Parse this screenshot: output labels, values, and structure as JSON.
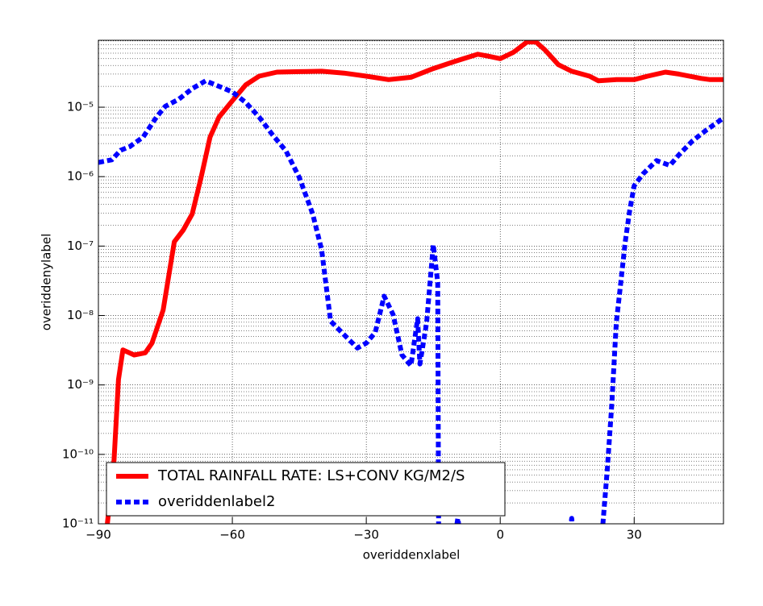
{
  "chart_data": {
    "type": "line",
    "xlabel": "overiddenxlabel",
    "ylabel": "overiddenylabel",
    "xlim": [
      -90,
      50
    ],
    "xticks": [
      {
        "value": -90,
        "label": "−90"
      },
      {
        "value": -60,
        "label": "−60"
      },
      {
        "value": -30,
        "label": "−30"
      },
      0,
      30
    ],
    "ylim": [
      1e-11,
      9.2e-05
    ],
    "yscale": "log",
    "yticks": [
      {
        "value": 1e-11,
        "label": "10⁻¹¹"
      },
      {
        "value": 1e-10,
        "label": "10⁻¹⁰"
      },
      {
        "value": 1e-09,
        "label": "10⁻⁹"
      },
      {
        "value": 1e-08,
        "label": "10⁻⁸"
      },
      {
        "value": 1e-07,
        "label": "10⁻⁷"
      },
      {
        "value": 1e-06,
        "label": "10⁻⁶"
      },
      {
        "value": 1e-05,
        "label": "10⁻⁵"
      }
    ],
    "grid": true,
    "minor_grid": true,
    "legend": "lower left",
    "series": [
      {
        "name": "TOTAL RAINFALL RATE: LS+CONV KG/M2/S",
        "color": "#ff0000",
        "linestyle": "solid",
        "x": [
          -89,
          -88,
          -86.5,
          -85.5,
          -84.5,
          -82,
          -79.5,
          -78,
          -75.5,
          -73,
          -71,
          -69,
          -67,
          -65,
          -63,
          -60,
          -57,
          -54,
          -50,
          -45,
          -40,
          -35,
          -30,
          -25,
          -20,
          -15,
          -10,
          -5,
          -3,
          0,
          3,
          6,
          8,
          10,
          13,
          16,
          20,
          22,
          26,
          30,
          33,
          37,
          40,
          45,
          47,
          50
        ],
        "values": [
          1e-12,
          1e-11,
          8.3e-11,
          1.2e-09,
          3.2e-09,
          2.7e-09,
          2.9e-09,
          4e-09,
          1.2e-08,
          1.15e-07,
          1.7e-07,
          2.9e-07,
          9.7e-07,
          3.7e-06,
          7.2e-06,
          1.24e-05,
          2.1e-05,
          2.8e-05,
          3.2e-05,
          3.25e-05,
          3.3e-05,
          3.1e-05,
          2.8e-05,
          2.5e-05,
          2.7e-05,
          3.6e-05,
          4.6e-05,
          5.8e-05,
          5.5e-05,
          5e-05,
          6.2e-05,
          8.7e-05,
          8.7e-05,
          6.7e-05,
          4.1e-05,
          3.3e-05,
          2.8e-05,
          2.4e-05,
          2.5e-05,
          2.5e-05,
          2.8e-05,
          3.2e-05,
          3e-05,
          2.6e-05,
          2.5e-05,
          2.5e-05
        ]
      },
      {
        "name": "overiddenlabel2",
        "color": "#0000ff",
        "linestyle": "dashed",
        "x": [
          -90,
          -87,
          -85,
          -83,
          -80,
          -77,
          -75,
          -72,
          -69,
          -66,
          -63,
          -60,
          -57,
          -54,
          -51,
          -48,
          -45,
          -42,
          -40,
          -38,
          -35,
          -32,
          -30,
          -28,
          -26,
          -24,
          -22,
          -20,
          -18.5,
          -18,
          -16.5,
          -15,
          -14,
          -13.8,
          -12,
          -9.5,
          -7,
          14,
          16,
          18,
          23,
          24,
          25,
          26,
          27,
          28,
          29,
          30,
          32,
          35,
          38,
          40,
          43,
          46,
          50
        ],
        "values": [
          1.6e-06,
          1.75e-06,
          2.4e-06,
          2.7e-06,
          3.7e-06,
          7.2e-06,
          1.03e-05,
          1.3e-05,
          1.85e-05,
          2.4e-05,
          2e-05,
          1.66e-05,
          1.17e-05,
          7.2e-06,
          4e-06,
          2.35e-06,
          9.7e-07,
          2.9e-07,
          8.8e-08,
          8.3e-09,
          5.3e-09,
          3.4e-09,
          4e-09,
          5.7e-09,
          1.9e-08,
          1.03e-08,
          2.7e-09,
          1.9e-09,
          9e-09,
          2e-09,
          7.8e-09,
          1.05e-07,
          3e-08,
          1e-11,
          1e-12,
          1.2e-11,
          1e-12,
          1e-12,
          1.2e-11,
          1e-12,
          1e-11,
          6.4e-11,
          5.4e-10,
          7.8e-09,
          3e-08,
          1.15e-07,
          3.3e-07,
          7.4e-07,
          1.1e-06,
          1.7e-06,
          1.45e-06,
          2.05e-06,
          3.25e-06,
          4.6e-06,
          7e-06
        ]
      }
    ]
  }
}
